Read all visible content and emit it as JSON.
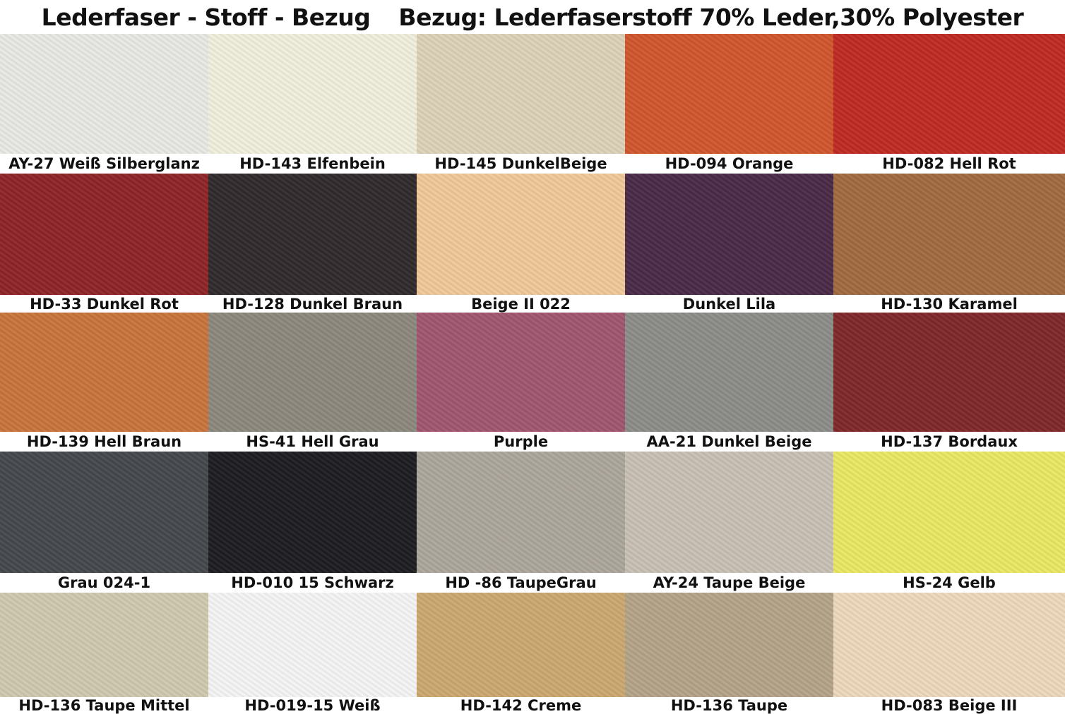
{
  "title": {
    "left": "Lederfaser  - Stoff - Bezug",
    "right": "Bezug: Lederfaserstoff 70% Leder,30% Polyester"
  },
  "swatches": [
    [
      {
        "label": "AY-27 Weiß Silberglanz",
        "color": "#e8e8e4"
      },
      {
        "label": "HD-143 Elfenbein",
        "color": "#f0efdc"
      },
      {
        "label": "HD-145 DunkelBeige",
        "color": "#dcd2b8"
      },
      {
        "label": "HD-094 Orange",
        "color": "#d0562c"
      },
      {
        "label": "HD-082 Hell Rot",
        "color": "#bf2a24"
      }
    ],
    [
      {
        "label": "HD-33 Dunkel Rot",
        "color": "#8e2528"
      },
      {
        "label": "HD-128 Dunkel Braun",
        "color": "#302a2c"
      },
      {
        "label": "Beige II 022",
        "color": "#f0c898"
      },
      {
        "label": "Dunkel Lila",
        "color": "#4a2a48"
      },
      {
        "label": "HD-130 Karamel",
        "color": "#a06a40"
      }
    ],
    [
      {
        "label": "HD-139 Hell Braun",
        "color": "#c8743c"
      },
      {
        "label": "HS-41 Hell Grau",
        "color": "#8c887c"
      },
      {
        "label": "Purple",
        "color": "#a05670"
      },
      {
        "label": "AA-21 Dunkel Beige",
        "color": "#8c8c88"
      },
      {
        "label": "HD-137 Bordaux",
        "color": "#80282a"
      }
    ],
    [
      {
        "label": "Grau 024-1",
        "color": "#44484c"
      },
      {
        "label": "HD-010 15 Schwarz",
        "color": "#1e1e22"
      },
      {
        "label": "HD -86 TaupeGrau",
        "color": "#aca69c"
      },
      {
        "label": "AY-24 Taupe Beige",
        "color": "#c8c0b4"
      },
      {
        "label": "HS-24 Gelb",
        "color": "#eae864"
      }
    ],
    [
      {
        "label": "HD-136 Taupe Mittel",
        "color": "#d0c8b0"
      },
      {
        "label": "HD-019-15 Weiß",
        "color": "#f4f4f4"
      },
      {
        "label": "HD-142 Creme",
        "color": "#cca870"
      },
      {
        "label": "HD-136 Taupe",
        "color": "#b4a488"
      },
      {
        "label": "HD-083 Beige III",
        "color": "#ecd8bc"
      }
    ]
  ]
}
